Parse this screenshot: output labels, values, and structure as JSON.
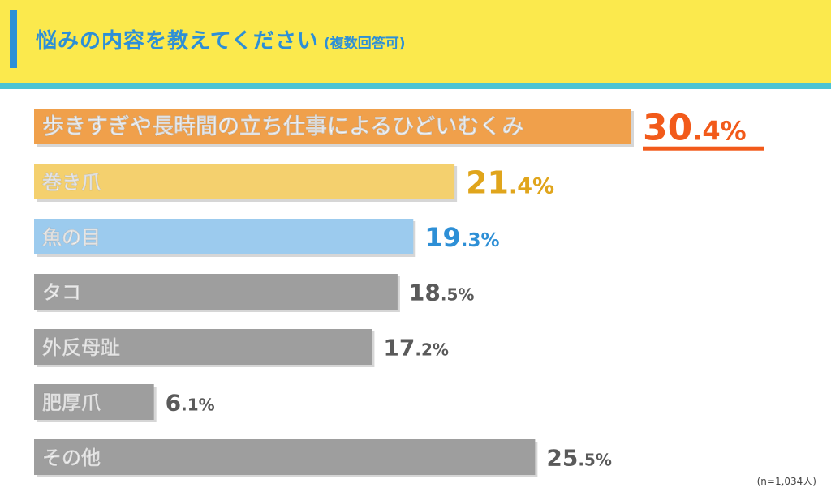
{
  "header": {
    "title": "悩みの内容を教えてください",
    "subtitle": "(複数回答可)"
  },
  "footnote": "(n=1,034人)",
  "colors": {
    "header_bg": "#fbe94d",
    "title_accent": "#2d8fd6",
    "header_rule": "#4cc3d2",
    "bar_top": "#f0a04b",
    "value_top": "#f25a1a",
    "bar_second": "#f4d06e",
    "value_second": "#e0a51c",
    "bar_third": "#9ccbee",
    "value_third": "#2d8fd6",
    "bar_other": "#9e9e9e",
    "value_other": "#5a5a5a"
  },
  "chart_data": {
    "type": "bar",
    "orientation": "horizontal",
    "categories": [
      "歩きすぎや長時間の立ち仕事によるひどいむくみ",
      "巻き爪",
      "魚の目",
      "タコ",
      "外反母趾",
      "肥厚爪",
      "その他"
    ],
    "values": [
      30.4,
      21.4,
      19.3,
      18.5,
      17.2,
      6.1,
      25.5
    ],
    "value_labels": [
      "30.4%",
      "21.4%",
      "19.3%",
      "18.5%",
      "17.2%",
      "6.1%",
      "25.5%"
    ],
    "unit": "%",
    "xlim": [
      0,
      33
    ],
    "grid": false,
    "legend": "none"
  }
}
